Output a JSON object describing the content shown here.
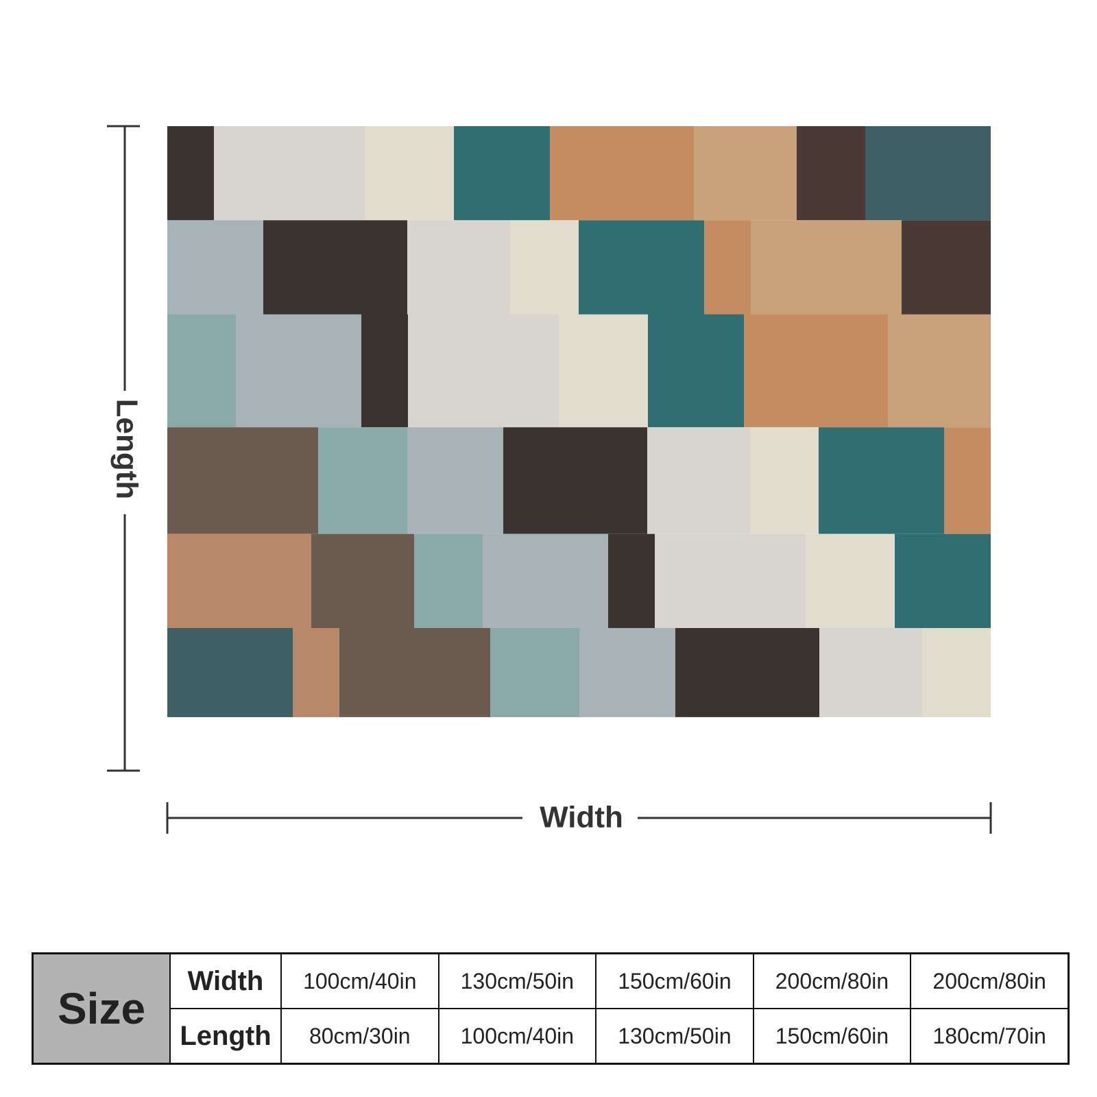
{
  "diagram": {
    "length_label": "Length",
    "width_label": "Width"
  },
  "table": {
    "corner": "Size",
    "row_headers": [
      "Width",
      "Length"
    ],
    "rows": [
      [
        "100cm/40in",
        "130cm/50in",
        "150cm/60in",
        "200cm/80in",
        "200cm/80in"
      ],
      [
        "80cm/30in",
        "100cm/40in",
        "130cm/50in",
        "150cm/60in",
        "180cm/70in"
      ]
    ]
  }
}
